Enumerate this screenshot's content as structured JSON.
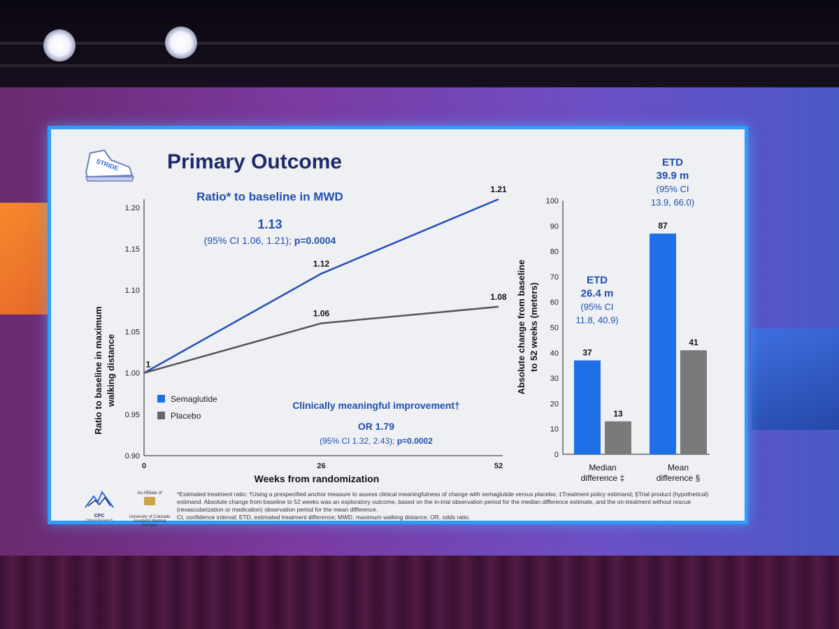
{
  "slide": {
    "title": "Primary Outcome",
    "logo_text": "STRIDE",
    "footnote": "*Estimated treatment ratio; †Using a prespecified anchor measure to assess clinical meaningfulness of change with semaglutide versus placebo; ‡Treatment policy estimand; §Trial product (hypothetical) estimand. Absolute change from baseline to 52 weeks was an exploratory outcome, based on the in-trial observation period for the median difference estimate, and the on-treatment without rescue (revascularization or medication) observation period for the mean difference.",
    "footnote2": "CI, confidence interval; ETD, estimated treatment difference; MWD, maximum walking distance; OR, odds ratio.",
    "cpc_label": "CPC",
    "cpc_sub": "Clinical Research",
    "affiliate_text": "An Affiliate of",
    "affiliate_school": "University of Colorado Anschutz Medical Campus"
  },
  "colors": {
    "semaglutide": "#2350b8",
    "semaglutide_bar": "#1f6fe6",
    "placebo": "#555555",
    "placebo_bar": "#7a7a7a",
    "text_blue": "#1f4fb0"
  },
  "chart_data": [
    {
      "type": "line",
      "title": "Ratio* to baseline in MWD",
      "headline": "1.13",
      "ci_text": "(95% CI 1.06, 1.21); ",
      "p_text": "p=0.0004",
      "xlabel": "Weeks from randomization",
      "ylabel_line1": "Ratio to baseline in maximum",
      "ylabel_line2": "walking distance",
      "x": [
        0,
        26,
        52
      ],
      "x_tick_labels": [
        "0",
        "26",
        "52"
      ],
      "y_ticks": [
        0.9,
        0.95,
        1.0,
        1.05,
        1.1,
        1.15,
        1.2
      ],
      "y_tick_labels": [
        "0.90",
        "0.95",
        "1.00",
        "1.05",
        "1.10",
        "1.15",
        "1.20"
      ],
      "ylim": [
        0.9,
        1.21
      ],
      "series": [
        {
          "name": "Semaglutide",
          "values": [
            1.0,
            1.12,
            1.21
          ],
          "labels": [
            "1",
            "1.12",
            "1.21"
          ]
        },
        {
          "name": "Placebo",
          "values": [
            1.0,
            1.06,
            1.08
          ],
          "labels": [
            "",
            "1.06",
            "1.08"
          ]
        }
      ],
      "annotation_title": "Clinically meaningful improvement†",
      "annotation_or": "OR 1.79",
      "annotation_ci": "(95% CI 1.32, 2.43); ",
      "annotation_p": "p=0.0002"
    },
    {
      "type": "bar",
      "ylabel_line1": "Absolute change from baseline",
      "ylabel_line2": "to 52 weeks (meters)",
      "ylim": [
        0,
        100
      ],
      "y_ticks": [
        0,
        10,
        20,
        30,
        40,
        50,
        60,
        70,
        80,
        90,
        100
      ],
      "y_tick_labels": [
        "0",
        "10",
        "20",
        "30",
        "40",
        "50",
        "60",
        "70",
        "80",
        "90",
        "100"
      ],
      "categories": [
        "Median difference ‡",
        "Mean difference §"
      ],
      "category_lines": [
        [
          "Median",
          "difference ‡"
        ],
        [
          "Mean",
          "difference §"
        ]
      ],
      "series": [
        {
          "name": "Semaglutide",
          "values": [
            37,
            87
          ],
          "labels": [
            "37",
            "87"
          ]
        },
        {
          "name": "Placebo",
          "values": [
            13,
            41
          ],
          "labels": [
            "13",
            "41"
          ]
        }
      ],
      "etd": [
        {
          "lines": [
            "ETD",
            "26.4 m",
            "(95% CI",
            "11.8, 40.9)"
          ]
        },
        {
          "lines": [
            "ETD",
            "39.9 m",
            "(95% CI",
            "13.9, 66.0)"
          ]
        }
      ]
    }
  ]
}
